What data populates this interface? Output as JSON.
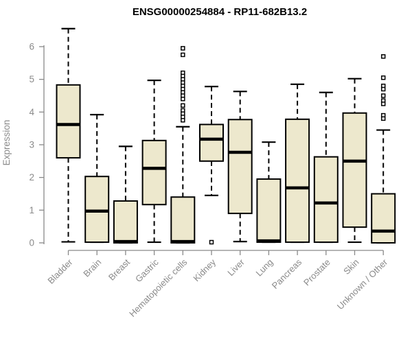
{
  "chart_data": {
    "type": "boxplot",
    "title": "ENSG00000254884 - RP11-682B13.2",
    "ylabel": "Expression",
    "xlabel": "",
    "ylim": [
      0,
      6.6
    ],
    "yticks": [
      0,
      1,
      2,
      3,
      4,
      5,
      6
    ],
    "grid": false,
    "legend": "none",
    "categories": [
      "Bladder",
      "Brain",
      "Breast",
      "Gastric",
      "Hematopoietic cells",
      "Kidney",
      "Liver",
      "Lung",
      "Pancreas",
      "Prostate",
      "Skin",
      "Unknown / Other"
    ],
    "series": [
      {
        "label": "Bladder",
        "whisker_low": 0.03,
        "q1": 2.6,
        "median": 3.62,
        "q3": 4.83,
        "whisker_high": 6.55,
        "outliers": []
      },
      {
        "label": "Brain",
        "whisker_low": 0.02,
        "q1": 0.02,
        "median": 0.97,
        "q3": 2.03,
        "whisker_high": 3.92,
        "outliers": []
      },
      {
        "label": "Breast",
        "whisker_low": 0.0,
        "q1": 0.0,
        "median": 0.04,
        "q3": 1.28,
        "whisker_high": 2.95,
        "outliers": []
      },
      {
        "label": "Gastric",
        "whisker_low": 0.02,
        "q1": 1.17,
        "median": 2.28,
        "q3": 3.13,
        "whisker_high": 4.97,
        "outliers": []
      },
      {
        "label": "Hematopoietic cells",
        "whisker_low": 0.0,
        "q1": 0.0,
        "median": 0.04,
        "q3": 1.4,
        "whisker_high": 3.55,
        "outliers": [
          5.95,
          5.75,
          5.2,
          5.1,
          5.0,
          4.9,
          4.8,
          4.7,
          4.6,
          4.5,
          4.4,
          4.2,
          4.05,
          3.95,
          3.85,
          3.75
        ]
      },
      {
        "label": "Kidney",
        "whisker_low": 1.45,
        "q1": 2.5,
        "median": 3.17,
        "q3": 3.62,
        "whisker_high": 4.78,
        "outliers": [
          0.02
        ]
      },
      {
        "label": "Liver",
        "whisker_low": 0.04,
        "q1": 0.9,
        "median": 2.77,
        "q3": 3.77,
        "whisker_high": 4.63,
        "outliers": []
      },
      {
        "label": "Lung",
        "whisker_low": 0.02,
        "q1": 0.02,
        "median": 0.06,
        "q3": 1.95,
        "whisker_high": 3.08,
        "outliers": []
      },
      {
        "label": "Pancreas",
        "whisker_low": 0.02,
        "q1": 0.02,
        "median": 1.68,
        "q3": 3.78,
        "whisker_high": 4.85,
        "outliers": []
      },
      {
        "label": "Prostate",
        "whisker_low": 0.02,
        "q1": 0.02,
        "median": 1.22,
        "q3": 2.63,
        "whisker_high": 4.6,
        "outliers": []
      },
      {
        "label": "Skin",
        "whisker_low": 0.02,
        "q1": 0.48,
        "median": 2.5,
        "q3": 3.97,
        "whisker_high": 5.02,
        "outliers": []
      },
      {
        "label": "Unknown / Other",
        "whisker_low": 0.0,
        "q1": 0.0,
        "median": 0.36,
        "q3": 1.5,
        "whisker_high": 3.45,
        "outliers": [
          5.7,
          5.05,
          4.8,
          4.7,
          4.5,
          4.35,
          4.25,
          3.9,
          3.8
        ]
      }
    ]
  },
  "styles": {
    "background": "#ffffff",
    "box_fill": "#ede8cd",
    "box_stroke": "#000000",
    "median_color": "#000000",
    "whisker_color": "#000000",
    "outlier_fill": "#ffffff",
    "outlier_stroke": "#000000",
    "axis_color": "#898989",
    "label_color": "#8a8a8a",
    "title_color": "#000000"
  }
}
